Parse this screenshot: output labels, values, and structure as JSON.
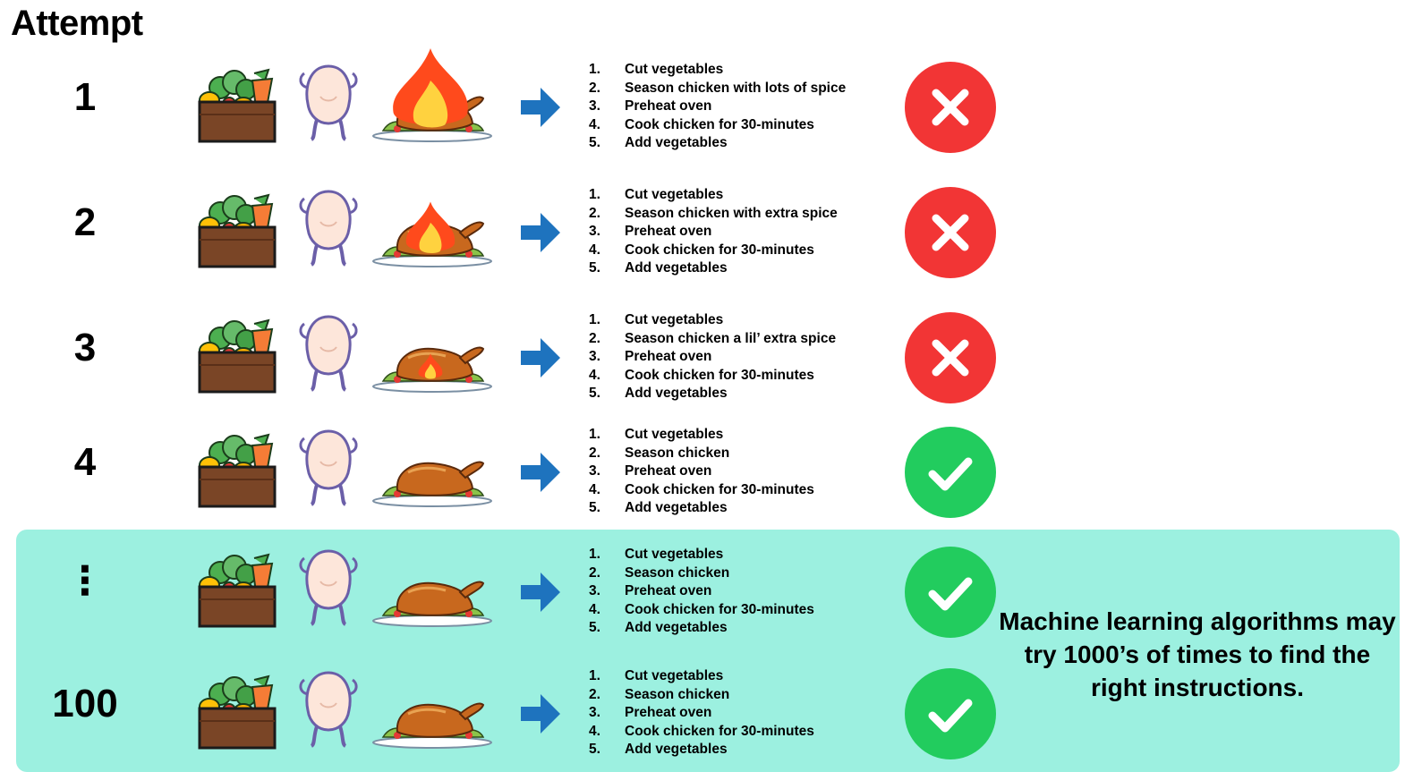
{
  "heading": "Attempt",
  "rows": [
    {
      "label": "1",
      "flame": "large",
      "result": "fail",
      "steps": [
        {
          "num": "1.",
          "text": "Cut vegetables"
        },
        {
          "num": "2.",
          "text": "Season chicken with lots of spice"
        },
        {
          "num": "3.",
          "text": "Preheat oven"
        },
        {
          "num": "4.",
          "text": "Cook chicken for 30-minutes"
        },
        {
          "num": "5.",
          "text": "Add vegetables"
        }
      ]
    },
    {
      "label": "2",
      "flame": "medium",
      "result": "fail",
      "steps": [
        {
          "num": "1.",
          "text": "Cut vegetables"
        },
        {
          "num": "2.",
          "text": "Season chicken with extra spice"
        },
        {
          "num": "3.",
          "text": "Preheat oven"
        },
        {
          "num": "4.",
          "text": "Cook chicken for 30-minutes"
        },
        {
          "num": "5.",
          "text": "Add vegetables"
        }
      ]
    },
    {
      "label": "3",
      "flame": "small",
      "result": "fail",
      "steps": [
        {
          "num": "1.",
          "text": "Cut vegetables"
        },
        {
          "num": "2.",
          "text": "Season chicken a lil’ extra spice"
        },
        {
          "num": "3.",
          "text": "Preheat oven"
        },
        {
          "num": "4.",
          "text": "Cook chicken for 30-minutes"
        },
        {
          "num": "5.",
          "text": "Add vegetables"
        }
      ]
    },
    {
      "label": "4",
      "flame": "none",
      "result": "pass",
      "steps": [
        {
          "num": "1.",
          "text": "Cut vegetables"
        },
        {
          "num": "2.",
          "text": "Season chicken"
        },
        {
          "num": "3.",
          "text": "Preheat oven"
        },
        {
          "num": "4.",
          "text": "Cook chicken for 30-minutes"
        },
        {
          "num": "5.",
          "text": "Add vegetables"
        }
      ]
    },
    {
      "label": "⋮",
      "flame": "none",
      "result": "pass",
      "steps": [
        {
          "num": "1.",
          "text": "Cut vegetables"
        },
        {
          "num": "2.",
          "text": "Season chicken"
        },
        {
          "num": "3.",
          "text": "Preheat oven"
        },
        {
          "num": "4.",
          "text": "Cook chicken for 30-minutes"
        },
        {
          "num": "5.",
          "text": "Add vegetables"
        }
      ]
    },
    {
      "label": "100",
      "flame": "none",
      "result": "pass",
      "steps": [
        {
          "num": "1.",
          "text": "Cut vegetables"
        },
        {
          "num": "2.",
          "text": "Season chicken"
        },
        {
          "num": "3.",
          "text": "Preheat oven"
        },
        {
          "num": "4.",
          "text": "Cook chicken for 30-minutes"
        },
        {
          "num": "5.",
          "text": "Add vegetables"
        }
      ]
    }
  ],
  "note": "Machine learning algorithms may try 1000’s of times to find the right instructions.",
  "icons": {
    "vegetables": "vegetable-crate-icon",
    "chicken": "raw-chicken-icon",
    "dish": "roast-chicken-platter-icon",
    "arrow": "right-arrow-icon",
    "fail": "cross-icon",
    "pass": "check-icon"
  },
  "colors": {
    "fail": "#f23535",
    "pass": "#22cc5e",
    "arrow": "#1e73be",
    "highlight": "#9cf0e0",
    "fire": "#ff4a1c"
  }
}
